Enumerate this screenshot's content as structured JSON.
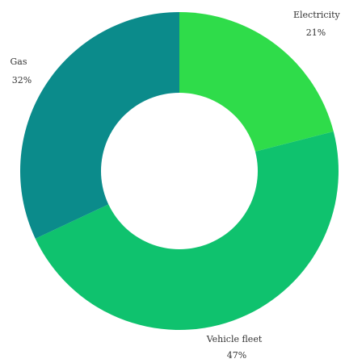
{
  "chart_data": {
    "type": "pie",
    "donut": true,
    "slices": [
      {
        "label": "Electricity",
        "percent_label": "21%",
        "value": 21,
        "color": "#2fdc4a"
      },
      {
        "label": "Vehicle fleet",
        "percent_label": "47%",
        "value": 47,
        "color": "#0fc26e"
      },
      {
        "label": "Gas",
        "percent_label": "32%",
        "value": 32,
        "color": "#0b8b8b"
      }
    ],
    "start": "12 o'clock",
    "direction": "clockwise"
  }
}
